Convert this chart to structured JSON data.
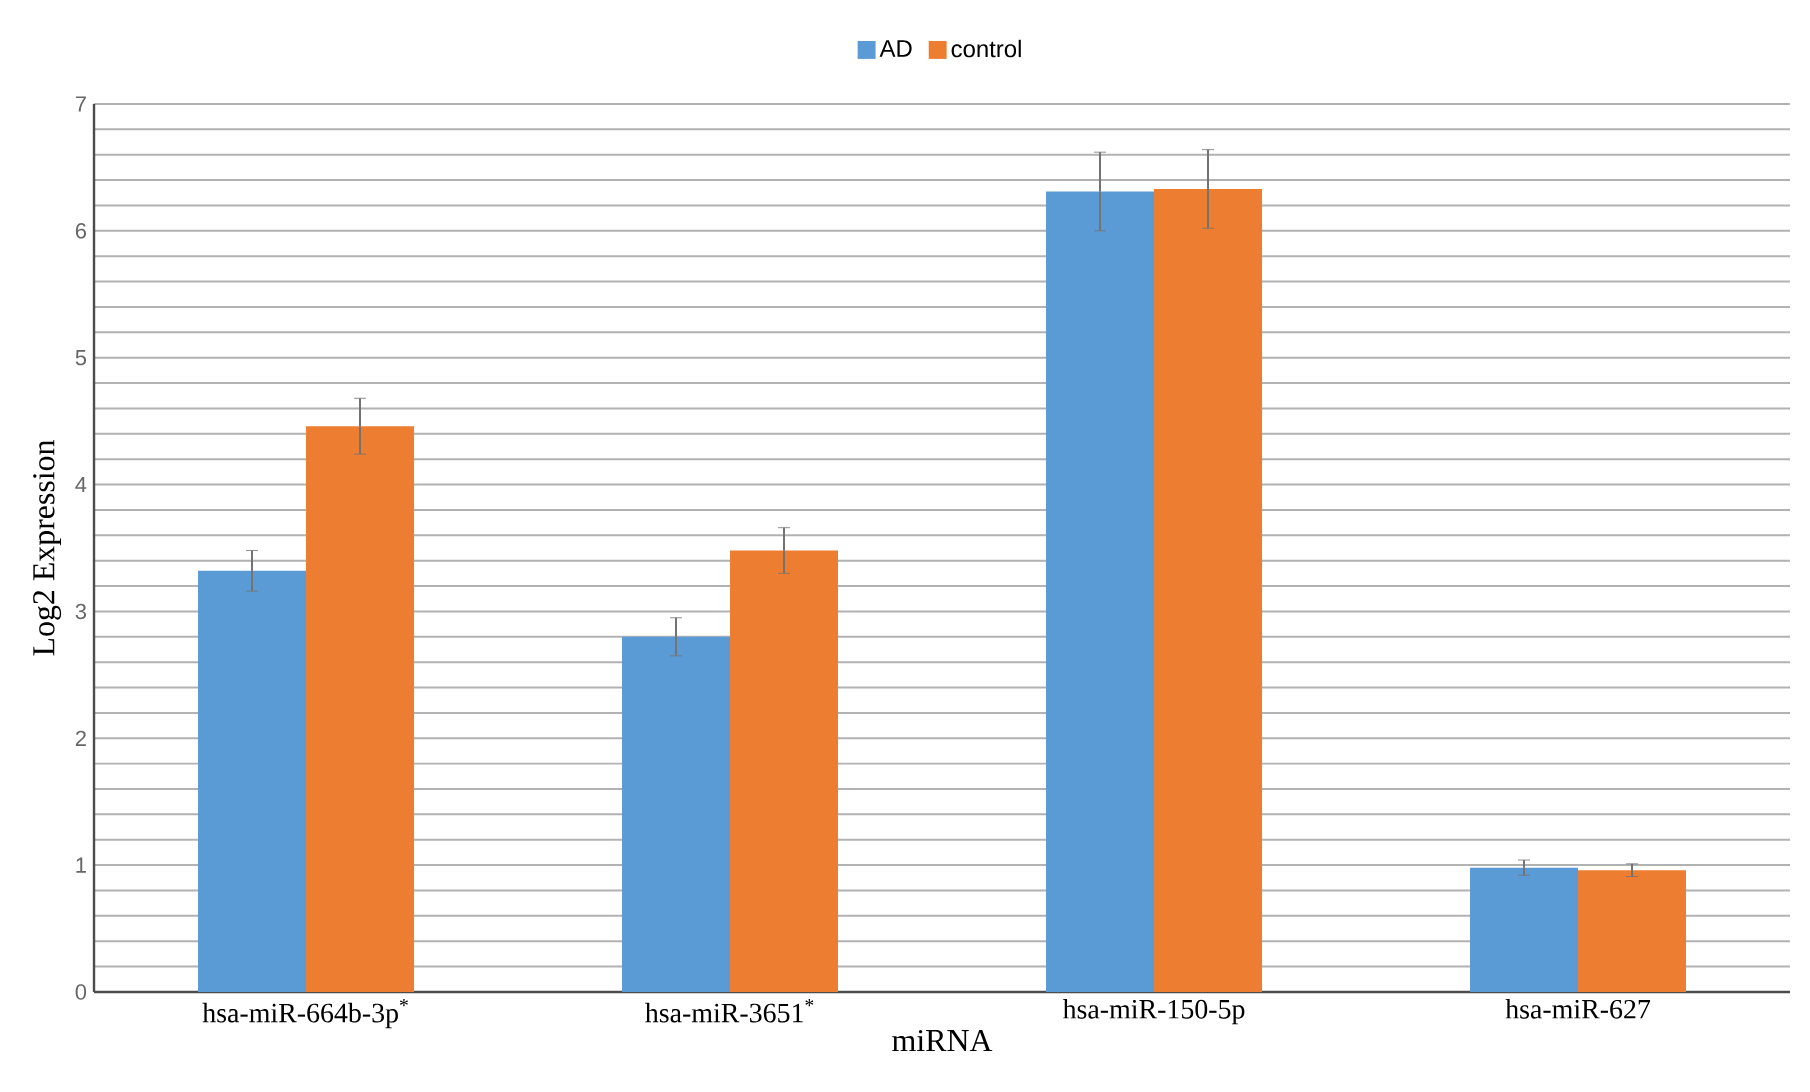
{
  "chart_data": {
    "type": "bar",
    "xlabel": "miRNA",
    "ylabel": "Log2 Expression",
    "categories": [
      "hsa-miR-664b-3p$^{*}$",
      "hsa-miR-3651$^{*}$",
      "hsa-miR-150-5p",
      "hsa-miR-627"
    ],
    "series": [
      {
        "name": "AD",
        "color": "#5b9bd5",
        "values": [
          3.32,
          2.8,
          6.31,
          0.98
        ],
        "errors": [
          0.16,
          0.15,
          0.31,
          0.06
        ]
      },
      {
        "name": "control",
        "color": "#ed7d31",
        "values": [
          4.46,
          3.48,
          6.33,
          0.96
        ],
        "errors": [
          0.22,
          0.18,
          0.31,
          0.05
        ]
      }
    ],
    "ylim": [
      0,
      7
    ],
    "yticks": [
      0,
      1,
      2,
      3,
      4,
      5,
      6,
      7
    ],
    "grid": "y",
    "legend": "top"
  }
}
